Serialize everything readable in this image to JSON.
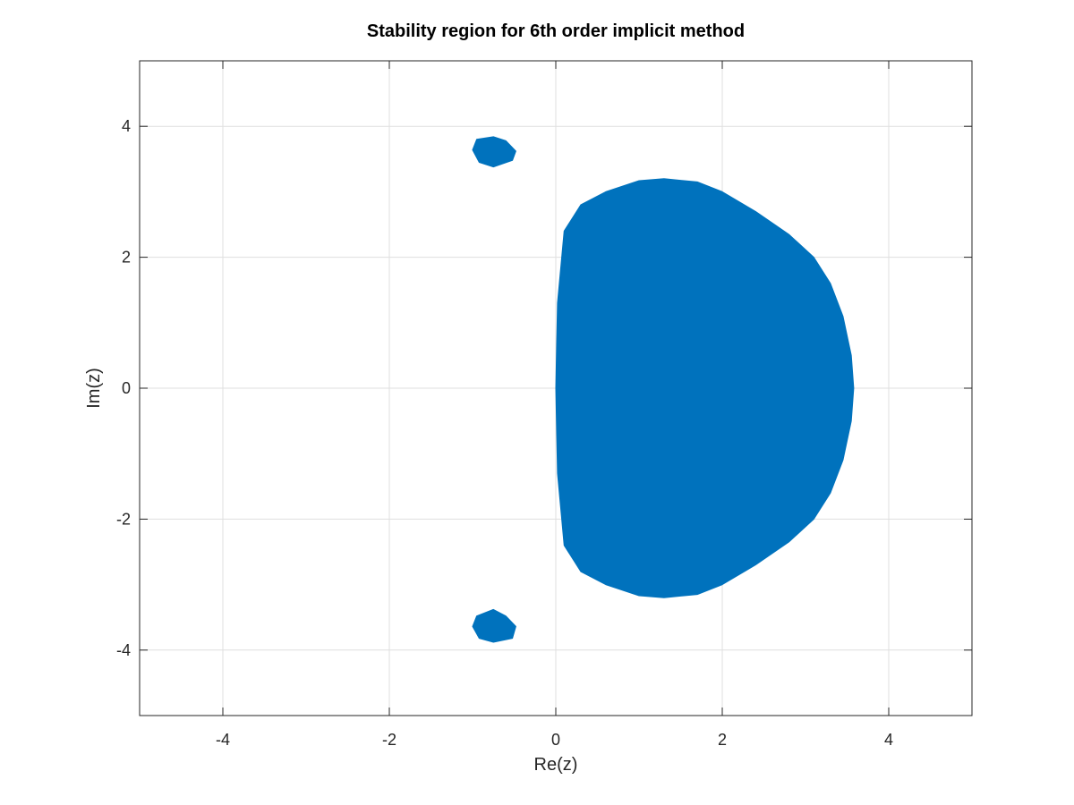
{
  "chart_data": {
    "type": "area",
    "title": "Stability region for 6th order implicit method",
    "xlabel": "Re(z)",
    "ylabel": "Im(z)",
    "xlim": [
      -5,
      5
    ],
    "ylim": [
      -5,
      5
    ],
    "xticks": [
      -4,
      -2,
      0,
      2,
      4
    ],
    "yticks": [
      -4,
      -2,
      0,
      2,
      4
    ],
    "grid": true,
    "fill_color": "#0072BD",
    "series": [
      {
        "region": "main",
        "x": [
          0.0,
          0.02,
          0.1,
          0.3,
          0.6,
          1.0,
          1.3,
          1.7,
          2.0,
          2.4,
          2.8,
          3.1,
          3.3,
          3.45,
          3.55,
          3.58,
          3.55,
          3.45,
          3.3,
          3.1,
          2.8,
          2.4,
          2.0,
          1.7,
          1.3,
          1.0,
          0.6,
          0.3,
          0.1,
          0.02
        ],
        "y": [
          0.0,
          1.3,
          2.4,
          2.8,
          3.0,
          3.17,
          3.2,
          3.15,
          3.0,
          2.7,
          2.35,
          2.0,
          1.6,
          1.1,
          0.5,
          0.0,
          -0.5,
          -1.1,
          -1.6,
          -2.0,
          -2.35,
          -2.7,
          -3.0,
          -3.15,
          -3.2,
          -3.17,
          -3.0,
          -2.8,
          -2.4,
          -1.3
        ]
      },
      {
        "region": "upper-island",
        "x": [
          -0.75,
          -0.6,
          -0.48,
          -0.52,
          -0.75,
          -0.92,
          -1.0,
          -0.95
        ],
        "y": [
          3.84,
          3.78,
          3.62,
          3.48,
          3.38,
          3.45,
          3.64,
          3.8
        ]
      },
      {
        "region": "lower-island",
        "x": [
          -0.75,
          -0.95,
          -1.0,
          -0.92,
          -0.75,
          -0.52,
          -0.48,
          -0.6
        ],
        "y": [
          -3.38,
          -3.48,
          -3.64,
          -3.82,
          -3.88,
          -3.82,
          -3.64,
          -3.48
        ]
      }
    ]
  }
}
